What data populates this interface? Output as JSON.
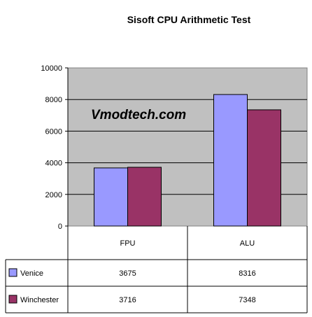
{
  "chart_data": {
    "type": "bar",
    "title": "Sisoft CPU Arithmetic Test",
    "watermark": "Vmodtech.com",
    "categories": [
      "FPU",
      "ALU"
    ],
    "series": [
      {
        "name": "Venice",
        "values": [
          3675,
          8316
        ],
        "color": "#9999ff"
      },
      {
        "name": "Winchester",
        "values": [
          3716,
          7348
        ],
        "color": "#993366"
      }
    ],
    "ylim": [
      0,
      10000
    ],
    "yticks": [
      "0",
      "2000",
      "4000",
      "6000",
      "8000",
      "10000"
    ],
    "table_values": [
      [
        "3675",
        "8316"
      ],
      [
        "3716",
        "7348"
      ]
    ],
    "plot_background": "#c0c0c0",
    "grid": true,
    "legend": "data-table"
  }
}
